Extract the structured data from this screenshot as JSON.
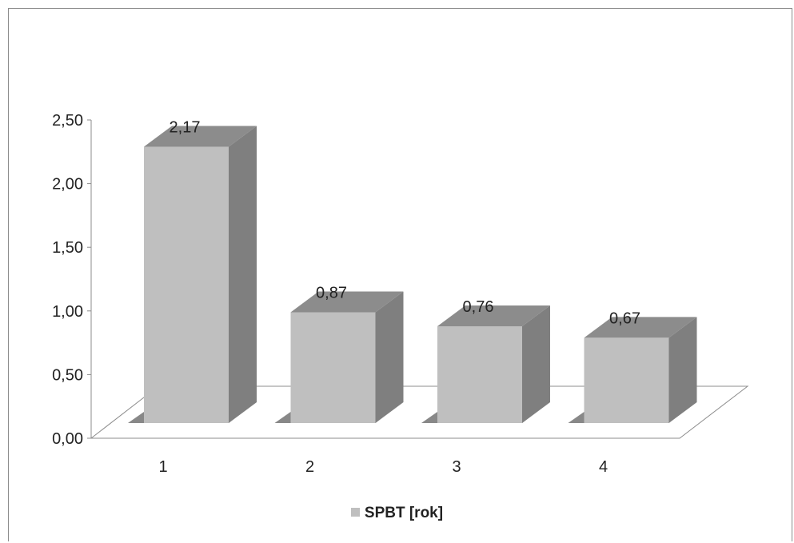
{
  "chart_data": {
    "type": "bar",
    "style": "3d-column",
    "categories": [
      "1",
      "2",
      "3",
      "4"
    ],
    "series": [
      {
        "name": "SPBT [rok]",
        "values": [
          2.17,
          0.87,
          0.76,
          0.67
        ],
        "color": "#bfbfbf"
      }
    ],
    "data_labels": [
      "2,17",
      "0,87",
      "0,76",
      "0,67"
    ],
    "y_ticks": [
      "0,00",
      "0,50",
      "1,00",
      "1,50",
      "2,00",
      "2,50"
    ],
    "ylim": [
      0,
      2.5
    ],
    "grid": false,
    "legend": "bottom-center",
    "colors": {
      "bar_front": "#bfbfbf",
      "bar_top": "#8c8c8c",
      "bar_side": "#7f7f7f",
      "axis": "#8c8c8c",
      "shadow": "#737373"
    }
  },
  "legend": {
    "label": "SPBT [rok]"
  }
}
